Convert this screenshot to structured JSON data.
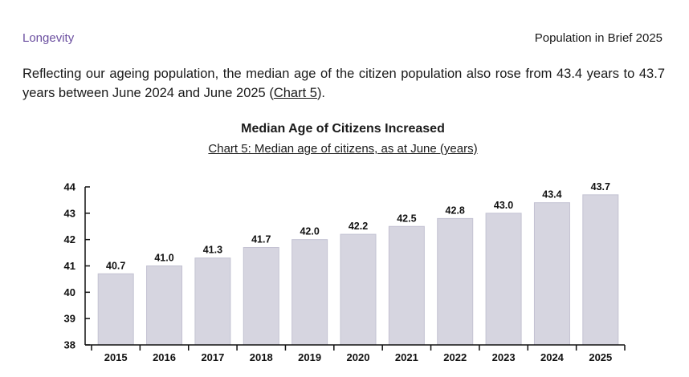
{
  "header": {
    "section": "Longevity",
    "publication": "Population in Brief 2025"
  },
  "paragraph": {
    "text_before": "Reflecting our ageing population, the median age of the citizen population also rose from 43.4 years to 43.7 years between June 2024 and June 2025 (",
    "link_text": "Chart 5",
    "text_after": ")."
  },
  "chart_data": {
    "type": "bar",
    "title": "Median Age of Citizens Increased",
    "subtitle": "Chart 5: Median age of citizens, as at June (years)",
    "categories": [
      "2015",
      "2016",
      "2017",
      "2018",
      "2019",
      "2020",
      "2021",
      "2022",
      "2023",
      "2024",
      "2025"
    ],
    "values": [
      40.7,
      41.0,
      41.3,
      41.7,
      42.0,
      42.2,
      42.5,
      42.8,
      43.0,
      43.4,
      43.7
    ],
    "value_labels": [
      "40.7",
      "41.0",
      "41.3",
      "41.7",
      "42.0",
      "42.2",
      "42.5",
      "42.8",
      "43.0",
      "43.4",
      "43.7"
    ],
    "ylim": [
      38,
      44
    ],
    "yticks": [
      38,
      39,
      40,
      41,
      42,
      43,
      44
    ],
    "grid": false,
    "bar_color": "#d6d5e0",
    "bar_edge_color": "#c3c2d2",
    "axis_color": "#111111"
  }
}
